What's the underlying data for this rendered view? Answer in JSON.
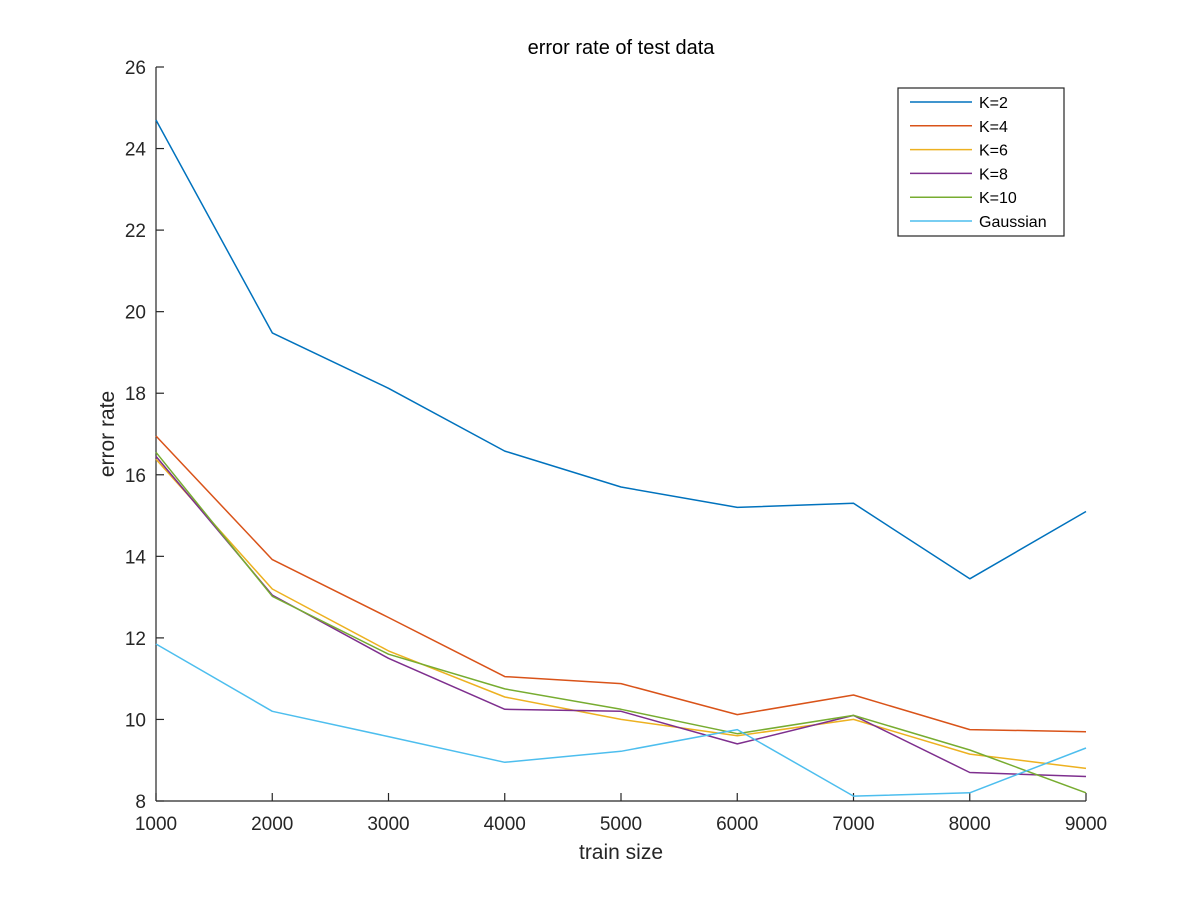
{
  "chart_data": {
    "type": "line",
    "title": "error rate of test data",
    "xlabel": "train size",
    "ylabel": "error rate",
    "xlim": [
      1000,
      9000
    ],
    "ylim": [
      8,
      26
    ],
    "xticks": [
      1000,
      2000,
      3000,
      4000,
      5000,
      6000,
      7000,
      8000,
      9000
    ],
    "yticks": [
      8,
      10,
      12,
      14,
      16,
      18,
      20,
      22,
      24,
      26
    ],
    "grid": false,
    "legend_position": "top-right",
    "x": [
      1000,
      2000,
      3000,
      4000,
      5000,
      6000,
      7000,
      8000,
      9000
    ],
    "series": [
      {
        "name": "K=2",
        "color": "#0072BD",
        "values": [
          24.7,
          19.48,
          18.12,
          16.58,
          15.7,
          15.2,
          15.3,
          13.45,
          15.1
        ]
      },
      {
        "name": "K=4",
        "color": "#D95319",
        "values": [
          16.95,
          13.92,
          12.5,
          11.05,
          10.88,
          10.12,
          10.6,
          9.75,
          9.7
        ]
      },
      {
        "name": "K=6",
        "color": "#EDB120",
        "values": [
          16.38,
          13.2,
          11.68,
          10.55,
          10.0,
          9.6,
          10.0,
          9.15,
          8.8
        ]
      },
      {
        "name": "K=8",
        "color": "#7E2F8E",
        "values": [
          16.45,
          13.05,
          11.5,
          10.25,
          10.2,
          9.4,
          10.1,
          8.7,
          8.6
        ]
      },
      {
        "name": "K=10",
        "color": "#77AC30",
        "values": [
          16.55,
          13.02,
          11.6,
          10.75,
          10.25,
          9.65,
          10.1,
          9.25,
          8.2
        ]
      },
      {
        "name": "Gaussian",
        "color": "#4DBEEE",
        "values": [
          11.85,
          10.2,
          9.58,
          8.95,
          9.22,
          9.75,
          8.12,
          8.2,
          9.3
        ]
      }
    ]
  }
}
